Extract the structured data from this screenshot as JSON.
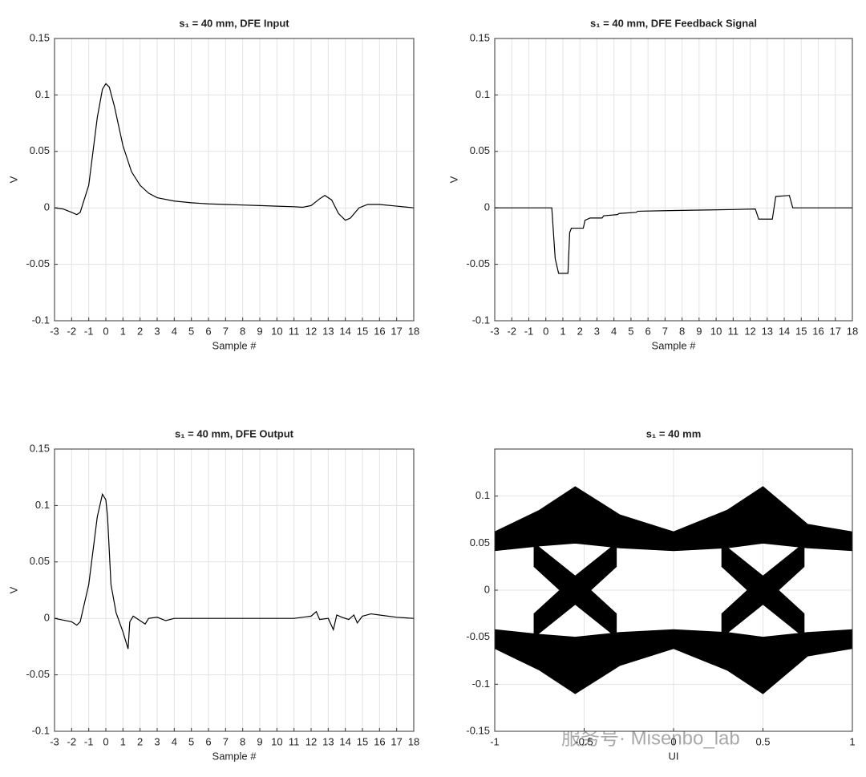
{
  "chart_data": [
    {
      "type": "line",
      "title": "s₁ = 40 mm, DFE Input",
      "xlabel": "Sample #",
      "ylabel": "V",
      "color": "#000000",
      "grid": true,
      "x": [
        -3,
        -2.5,
        -2,
        -1.7,
        -1.5,
        -1,
        -0.5,
        -0.2,
        0,
        0.2,
        0.5,
        1,
        1.5,
        2,
        2.5,
        3,
        4,
        5,
        6,
        7,
        8,
        9,
        10,
        11,
        11.5,
        12,
        12.5,
        12.8,
        13.2,
        13.6,
        14,
        14.3,
        14.8,
        15.3,
        16,
        17,
        18
      ],
      "values": [
        0,
        -0.001,
        -0.004,
        -0.006,
        -0.004,
        0.02,
        0.08,
        0.105,
        0.11,
        0.107,
        0.09,
        0.055,
        0.032,
        0.02,
        0.013,
        0.009,
        0.006,
        0.0045,
        0.0035,
        0.003,
        0.0025,
        0.002,
        0.0015,
        0.001,
        0.0005,
        0.002,
        0.008,
        0.011,
        0.007,
        -0.005,
        -0.011,
        -0.009,
        0,
        0.003,
        0.003,
        0.0015,
        0
      ],
      "xlim": [
        -3,
        18
      ],
      "xticks": [
        -3,
        -2,
        -1,
        0,
        1,
        2,
        3,
        4,
        5,
        6,
        7,
        8,
        9,
        10,
        11,
        12,
        13,
        14,
        15,
        16,
        17,
        18
      ],
      "ylim": [
        -0.1,
        0.15
      ],
      "yticks": [
        -0.1,
        -0.05,
        0,
        0.05,
        0.1,
        0.15
      ]
    },
    {
      "type": "line",
      "title": "s₁ = 40 mm, DFE Feedback Signal",
      "xlabel": "Sample #",
      "ylabel": "V",
      "color": "#000000",
      "grid": true,
      "x": [
        -3,
        0.35,
        0.55,
        0.75,
        1.3,
        1.4,
        1.5,
        2.2,
        2.3,
        2.6,
        3.3,
        3.4,
        4.2,
        4.3,
        5.3,
        5.4,
        7,
        9,
        11,
        12.3,
        12.5,
        13.3,
        13.5,
        14.3,
        14.5,
        18
      ],
      "values": [
        0,
        0,
        -0.045,
        -0.058,
        -0.058,
        -0.022,
        -0.018,
        -0.018,
        -0.011,
        -0.009,
        -0.009,
        -0.007,
        -0.006,
        -0.005,
        -0.004,
        -0.003,
        -0.0025,
        -0.002,
        -0.0015,
        -0.001,
        -0.01,
        -0.01,
        0.01,
        0.011,
        0,
        0
      ],
      "xlim": [
        -3,
        18
      ],
      "xticks": [
        -3,
        -2,
        -1,
        0,
        1,
        2,
        3,
        4,
        5,
        6,
        7,
        8,
        9,
        10,
        11,
        12,
        13,
        14,
        15,
        16,
        17,
        18
      ],
      "ylim": [
        -0.1,
        0.15
      ],
      "yticks": [
        -0.1,
        -0.05,
        0,
        0.05,
        0.1,
        0.15
      ]
    },
    {
      "type": "line",
      "title": "s₁ = 40 mm, DFE Output",
      "xlabel": "Sample #",
      "ylabel": "V",
      "color": "#000000",
      "grid": true,
      "x": [
        -3,
        -2,
        -1.7,
        -1.5,
        -1,
        -0.5,
        -0.2,
        0,
        0.1,
        0.3,
        0.6,
        1,
        1.3,
        1.4,
        1.6,
        2,
        2.3,
        2.5,
        3,
        3.5,
        4,
        5,
        8,
        11,
        12,
        12.3,
        12.5,
        13,
        13.3,
        13.5,
        13.8,
        14.2,
        14.5,
        14.7,
        15,
        15.5,
        16,
        17,
        18
      ],
      "values": [
        0,
        -0.003,
        -0.006,
        -0.003,
        0.03,
        0.09,
        0.11,
        0.105,
        0.09,
        0.03,
        0.005,
        -0.012,
        -0.027,
        -0.003,
        0.002,
        -0.002,
        -0.005,
        0,
        0.001,
        -0.002,
        0,
        0,
        0,
        0,
        0.002,
        0.006,
        -0.001,
        0,
        -0.01,
        0.003,
        0.001,
        -0.001,
        0.003,
        -0.004,
        0.002,
        0.004,
        0.003,
        0.001,
        0
      ],
      "xlim": [
        -3,
        18
      ],
      "xticks": [
        -3,
        -2,
        -1,
        0,
        1,
        2,
        3,
        4,
        5,
        6,
        7,
        8,
        9,
        10,
        11,
        12,
        13,
        14,
        15,
        16,
        17,
        18
      ],
      "ylim": [
        -0.1,
        0.15
      ],
      "yticks": [
        -0.1,
        -0.05,
        0,
        0.05,
        0.1,
        0.15
      ]
    },
    {
      "type": "eye",
      "title": "s₁ = 40 mm",
      "xlabel": "UI",
      "color": "#000000",
      "grid": true,
      "series": [
        {
          "x": [
            -1,
            -0.75,
            -0.55,
            -0.3,
            0,
            0.3,
            0.5,
            0.75,
            1
          ],
          "upper": [
            0.062,
            0.085,
            0.11,
            0.08,
            0.062,
            0.085,
            0.11,
            0.07,
            0.062
          ],
          "lower": [
            0.042,
            0.047,
            0.05,
            0.045,
            0.042,
            0.045,
            0.05,
            0.045,
            0.042
          ]
        },
        {
          "x": [
            -1,
            -0.75,
            -0.55,
            -0.3,
            0,
            0.3,
            0.5,
            0.75,
            1
          ],
          "upper": [
            -0.042,
            -0.047,
            -0.05,
            -0.045,
            -0.042,
            -0.045,
            -0.05,
            -0.045,
            -0.042
          ],
          "lower": [
            -0.062,
            -0.085,
            -0.11,
            -0.08,
            -0.062,
            -0.085,
            -0.11,
            -0.07,
            -0.062
          ]
        },
        {
          "x": [
            -0.78,
            -0.55,
            -0.32
          ],
          "upper": [
            0.05,
            0.015,
            -0.025
          ],
          "lower": [
            0.025,
            -0.015,
            -0.05
          ]
        },
        {
          "x": [
            -0.78,
            -0.55,
            -0.32
          ],
          "upper": [
            -0.025,
            0.015,
            0.05
          ],
          "lower": [
            -0.05,
            -0.015,
            0.025
          ]
        },
        {
          "x": [
            0.27,
            0.5,
            0.73
          ],
          "upper": [
            0.05,
            0.015,
            -0.025
          ],
          "lower": [
            0.025,
            -0.015,
            -0.05
          ]
        },
        {
          "x": [
            0.27,
            0.5,
            0.73
          ],
          "upper": [
            -0.025,
            0.015,
            0.05
          ],
          "lower": [
            -0.05,
            -0.015,
            0.025
          ]
        }
      ],
      "xlim": [
        -1,
        1
      ],
      "xticks": [
        -1,
        -0.5,
        0,
        0.5,
        1
      ],
      "ylim": [
        -0.15,
        0.15
      ],
      "yticks": [
        -0.15,
        -0.1,
        -0.05,
        0,
        0.05,
        0.1
      ]
    }
  ],
  "watermark": "服务号· Misenbo_lab"
}
